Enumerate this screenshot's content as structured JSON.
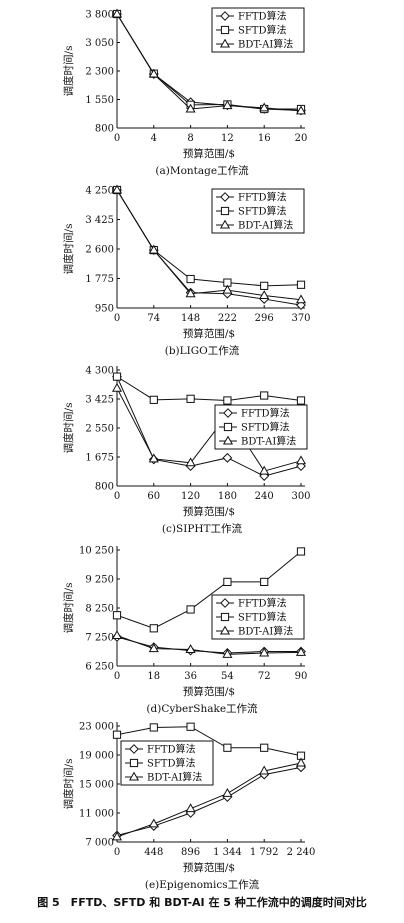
{
  "figure_caption": "图 5　FFTD、SFTD 和 BDT-AI 在 5 种工作流中的调度时间对比",
  "chart_data": [
    {
      "type": "line",
      "title": "(a)Montage工作流",
      "xlabel": "预算范围/$",
      "ylabel": "调度时间/s",
      "x": [
        0,
        4,
        8,
        12,
        16,
        20
      ],
      "xticks": [
        "0",
        "4",
        "8",
        "12",
        "16",
        "20"
      ],
      "yticks": [
        800,
        1550,
        2300,
        3050,
        3800
      ],
      "ytick_labels": [
        "800",
        "1 550",
        "2 300",
        "3 050",
        "3 800"
      ],
      "ylim": [
        800,
        3800
      ],
      "legend_position": "top-right",
      "series": [
        {
          "name": "FFTD算法",
          "marker": "diamond",
          "values": [
            3800,
            2220,
            1480,
            1400,
            1300,
            1260
          ]
        },
        {
          "name": "SFTD算法",
          "marker": "square",
          "values": [
            3800,
            2230,
            1410,
            1420,
            1300,
            1300
          ]
        },
        {
          "name": "BDT-AI算法",
          "marker": "triangle",
          "values": [
            3800,
            2220,
            1300,
            1390,
            1330,
            1250
          ]
        }
      ]
    },
    {
      "type": "line",
      "title": "(b)LIGO工作流",
      "xlabel": "预算范围/$",
      "ylabel": "调度时间/s",
      "x": [
        0,
        74,
        148,
        222,
        296,
        370
      ],
      "xticks": [
        "0",
        "74",
        "148",
        "222",
        "296",
        "370"
      ],
      "yticks": [
        950,
        1775,
        2600,
        3425,
        4250
      ],
      "ytick_labels": [
        "950",
        "1 775",
        "2 600",
        "3 425",
        "4 250"
      ],
      "ylim": [
        950,
        4250
      ],
      "legend_position": "top-right",
      "series": [
        {
          "name": "FFTD算法",
          "marker": "diamond",
          "values": [
            4250,
            2570,
            1380,
            1350,
            1200,
            1030
          ]
        },
        {
          "name": "SFTD算法",
          "marker": "square",
          "values": [
            4250,
            2570,
            1760,
            1660,
            1570,
            1600
          ]
        },
        {
          "name": "BDT-AI算法",
          "marker": "triangle",
          "values": [
            4250,
            2570,
            1350,
            1450,
            1300,
            1180
          ]
        }
      ]
    },
    {
      "type": "line",
      "title": "(c)SIPHT工作流",
      "xlabel": "预算范围/$",
      "ylabel": "调度时间/s",
      "x": [
        0,
        60,
        120,
        180,
        240,
        300
      ],
      "xticks": [
        "0",
        "60",
        "120",
        "180",
        "240",
        "300"
      ],
      "yticks": [
        800,
        1675,
        2550,
        3425,
        4300
      ],
      "ytick_labels": [
        "800",
        "1 675",
        "2 550",
        "3 425",
        "4 300"
      ],
      "ylim": [
        800,
        4300
      ],
      "legend_position": "center-right",
      "series": [
        {
          "name": "FFTD算法",
          "marker": "diamond",
          "values": [
            4100,
            1600,
            1400,
            1650,
            1100,
            1400
          ]
        },
        {
          "name": "SFTD算法",
          "marker": "square",
          "values": [
            4100,
            3400,
            3430,
            3380,
            3530,
            3380
          ]
        },
        {
          "name": "BDT-AI算法",
          "marker": "triangle",
          "values": [
            3750,
            1620,
            1500,
            2950,
            1250,
            1560
          ]
        }
      ]
    },
    {
      "type": "line",
      "title": "(d)CyberShake工作流",
      "xlabel": "预算范围/$",
      "ylabel": "调度时间/s",
      "x": [
        0,
        18,
        36,
        54,
        72,
        90
      ],
      "xticks": [
        "0",
        "18",
        "36",
        "54",
        "72",
        "90"
      ],
      "yticks": [
        6250,
        7250,
        8250,
        9250,
        10250
      ],
      "ytick_labels": [
        "6 250",
        "7 250",
        "8 250",
        "9 250",
        "10 250"
      ],
      "ylim": [
        6250,
        10250
      ],
      "legend_position": "center-right",
      "series": [
        {
          "name": "FFTD算法",
          "marker": "diamond",
          "values": [
            7250,
            6900,
            6780,
            6700,
            6750,
            6750
          ]
        },
        {
          "name": "SFTD算法",
          "marker": "square",
          "values": [
            8000,
            7550,
            8200,
            9150,
            9150,
            10200
          ]
        },
        {
          "name": "BDT-AI算法",
          "marker": "triangle",
          "values": [
            7300,
            6850,
            6820,
            6650,
            6700,
            6720
          ]
        }
      ]
    },
    {
      "type": "line",
      "title": "(e)Epigenomics工作流",
      "xlabel": "预算范围/$",
      "ylabel": "调度时间/s",
      "x": [
        0,
        448,
        896,
        1344,
        1792,
        2240
      ],
      "xticks": [
        "0",
        "448",
        "896",
        "1 344",
        "1 792",
        "2 240"
      ],
      "yticks": [
        7000,
        11000,
        15000,
        19000,
        23000
      ],
      "ytick_labels": [
        "7 000",
        "11 000",
        "15 000",
        "19 000",
        "23 000"
      ],
      "ylim": [
        7000,
        23000
      ],
      "legend_position": "top-left",
      "series": [
        {
          "name": "FFTD算法",
          "marker": "diamond",
          "values": [
            7900,
            9200,
            11000,
            13200,
            16300,
            17300
          ]
        },
        {
          "name": "SFTD算法",
          "marker": "square",
          "values": [
            21800,
            22800,
            22900,
            20000,
            20000,
            18900
          ]
        },
        {
          "name": "BDT-AI算法",
          "marker": "triangle",
          "values": [
            7700,
            9500,
            11600,
            13700,
            16800,
            17900
          ]
        }
      ]
    }
  ]
}
